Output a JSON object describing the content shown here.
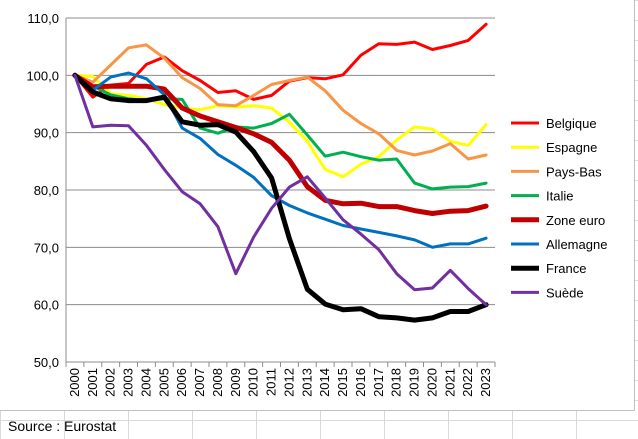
{
  "chart_data": {
    "type": "line",
    "title": "",
    "xlabel": "",
    "ylabel": "",
    "ylim": [
      50,
      110
    ],
    "yticks": [
      50,
      60,
      70,
      80,
      90,
      100,
      110
    ],
    "ytick_labels": [
      "50,0",
      "60,0",
      "70,0",
      "80,0",
      "90,0",
      "100,0",
      "110,0"
    ],
    "grid": true,
    "legend_position": "right",
    "x": [
      "2000",
      "2001",
      "2002",
      "2003",
      "2004",
      "2005",
      "2006",
      "2007",
      "2008",
      "2009",
      "2010",
      "2011",
      "2012",
      "2013",
      "2014",
      "2015",
      "2016",
      "2017",
      "2018",
      "2019",
      "2020",
      "2021",
      "2022",
      "2023"
    ],
    "series": [
      {
        "name": "Belgique",
        "color": "#ff0000",
        "width": 3,
        "values": [
          100,
          96.2,
          98.3,
          98.6,
          101.9,
          103.2,
          100.8,
          99.1,
          97.0,
          97.3,
          95.8,
          96.5,
          99.0,
          99.6,
          99.4,
          100.1,
          103.5,
          105.5,
          105.4,
          105.8,
          104.5,
          105.2,
          106.1,
          108.9
        ]
      },
      {
        "name": "Espagne",
        "color": "#ffff00",
        "width": 3,
        "values": [
          100,
          99.8,
          96.8,
          96.5,
          95.9,
          94.9,
          94.3,
          94.0,
          94.7,
          94.5,
          94.7,
          94.3,
          91.8,
          88.5,
          83.6,
          82.3,
          84.5,
          85.8,
          88.7,
          91.0,
          90.6,
          88.5,
          87.8,
          91.4
        ]
      },
      {
        "name": "Pays-Bas",
        "color": "#f79646",
        "width": 3,
        "values": [
          100,
          98.8,
          101.8,
          104.8,
          105.3,
          103.0,
          99.6,
          97.7,
          94.9,
          94.7,
          96.5,
          98.4,
          99.1,
          99.7,
          97.3,
          93.9,
          91.6,
          89.8,
          86.9,
          86.1,
          86.8,
          88.1,
          85.4,
          86.1
        ]
      },
      {
        "name": "Italie",
        "color": "#00b050",
        "width": 3,
        "values": [
          100,
          98.1,
          96.6,
          95.9,
          95.6,
          95.9,
          95.8,
          90.8,
          89.9,
          91.0,
          90.8,
          91.6,
          93.2,
          89.6,
          85.9,
          86.6,
          85.8,
          85.2,
          85.4,
          81.2,
          80.2,
          80.5,
          80.6,
          81.2
        ]
      },
      {
        "name": "Zone euro",
        "color": "#c00000",
        "width": 5,
        "values": [
          100,
          98.0,
          98.1,
          98.1,
          98.1,
          97.6,
          94.3,
          92.9,
          91.9,
          90.9,
          89.8,
          88.3,
          85.2,
          80.6,
          78.2,
          77.6,
          77.7,
          77.1,
          77.1,
          76.4,
          75.9,
          76.3,
          76.4,
          77.2
        ]
      },
      {
        "name": "Allemagne",
        "color": "#0070c0",
        "width": 3,
        "values": [
          100,
          97.4,
          99.7,
          100.4,
          99.4,
          96.6,
          90.8,
          89.0,
          86.2,
          84.3,
          82.2,
          79.0,
          77.3,
          76.0,
          74.9,
          73.8,
          73.2,
          72.6,
          72.0,
          71.3,
          70.0,
          70.6,
          70.6,
          71.6
        ]
      },
      {
        "name": "France",
        "color": "#000000",
        "width": 5,
        "values": [
          100,
          97.1,
          95.9,
          95.6,
          95.6,
          96.2,
          91.9,
          91.3,
          91.4,
          90.1,
          86.7,
          82.1,
          71.5,
          62.7,
          60.1,
          59.1,
          59.3,
          57.9,
          57.7,
          57.3,
          57.7,
          58.8,
          58.8,
          60.0
        ]
      },
      {
        "name": "Suède",
        "color": "#7030a0",
        "width": 3,
        "values": [
          100,
          91.0,
          91.3,
          91.2,
          87.8,
          83.6,
          79.7,
          77.6,
          73.6,
          65.4,
          71.8,
          76.8,
          80.5,
          82.3,
          78.6,
          74.8,
          72.3,
          69.6,
          65.4,
          62.6,
          62.9,
          66.0,
          62.8,
          60.0
        ]
      }
    ]
  },
  "footer": {
    "source": "Source : Eurostat"
  }
}
